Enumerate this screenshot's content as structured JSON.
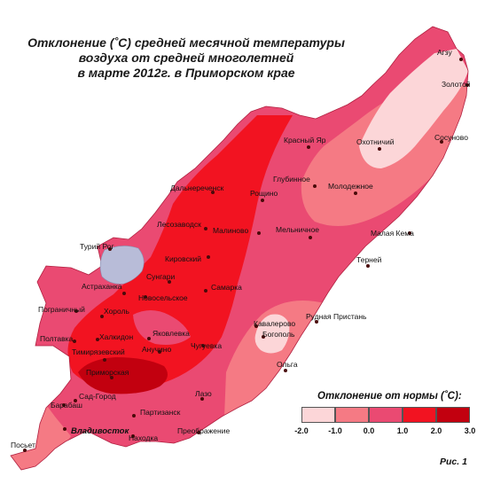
{
  "title": {
    "line1": "Отклонение (˚С) средней  месячной температуры",
    "line2": "воздуха  от средней многолетней",
    "line3": "в марте 2012г. в Приморском крае"
  },
  "legend": {
    "title": "Отклонение от нормы (˚С):",
    "ticks": [
      "-2.0",
      "-1.0",
      "0.0",
      "1.0",
      "2.0",
      "3.0"
    ],
    "colors": [
      "#fcd6d8",
      "#f57a84",
      "#ea4a72",
      "#f21321",
      "#c2000f"
    ]
  },
  "figure_label": "Рис. 1",
  "cities": [
    {
      "name": "Агзу"
    },
    {
      "name": "Золотой"
    },
    {
      "name": "Красный Яр"
    },
    {
      "name": "Охотничий"
    },
    {
      "name": "Сосуново"
    },
    {
      "name": "Глубинное"
    },
    {
      "name": "Дальнереченск"
    },
    {
      "name": "Рощино"
    },
    {
      "name": "Молодежное"
    },
    {
      "name": "Лесозаводск"
    },
    {
      "name": "Малиново"
    },
    {
      "name": "Мельничное"
    },
    {
      "name": "Малая Кема"
    },
    {
      "name": "Турий Рог"
    },
    {
      "name": "Кировский"
    },
    {
      "name": "Терней"
    },
    {
      "name": "Сунгари"
    },
    {
      "name": "Астраханка"
    },
    {
      "name": "Новосельское"
    },
    {
      "name": "Самарка"
    },
    {
      "name": "Пограничный"
    },
    {
      "name": "Хороль"
    },
    {
      "name": "Рудная Пристань"
    },
    {
      "name": "Кавалерово"
    },
    {
      "name": "Полтавка"
    },
    {
      "name": "Яковлевка"
    },
    {
      "name": "Богополь"
    },
    {
      "name": "Халкидон"
    },
    {
      "name": "Анучино"
    },
    {
      "name": "Чугуевка"
    },
    {
      "name": "Тимирязевский"
    },
    {
      "name": "Ольга"
    },
    {
      "name": "Приморская"
    },
    {
      "name": "Лазо"
    },
    {
      "name": "Сад-Город"
    },
    {
      "name": "Барабаш"
    },
    {
      "name": "Партизанск"
    },
    {
      "name": "Владивосток"
    },
    {
      "name": "Находка"
    },
    {
      "name": "Преображение"
    },
    {
      "name": "Посьет"
    }
  ]
}
